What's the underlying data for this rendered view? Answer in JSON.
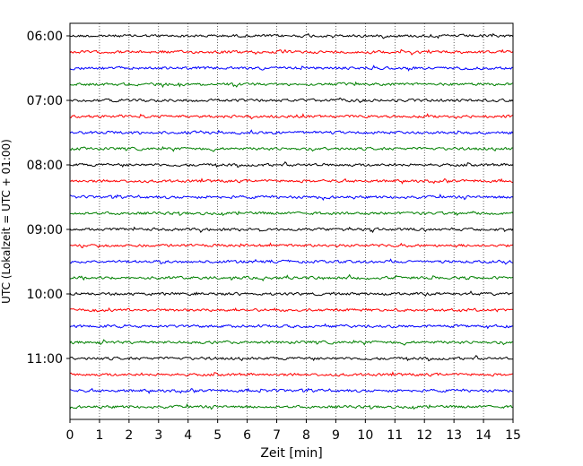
{
  "chart_data": {
    "type": "line",
    "title": "",
    "xlabel": "Zeit  [min]",
    "ylabel": "UTC (Lokalzeit = UTC + 01:00)",
    "xlim": [
      0,
      15
    ],
    "xticks": [
      0,
      1,
      2,
      3,
      4,
      5,
      6,
      7,
      8,
      9,
      10,
      11,
      12,
      13,
      14,
      15
    ],
    "grid": "vertical-dotted",
    "y_tick_labels": [
      "06:00",
      "07:00",
      "08:00",
      "09:00",
      "10:00",
      "11:00"
    ],
    "trace_interval_min": 15,
    "start_time": "06:00",
    "trace_count": 24,
    "trace_colors": [
      "#000000",
      "#ff0000",
      "#0000ff",
      "#008000"
    ],
    "amplitude_note": "noise-like seismogram traces, one per 15-minute window"
  }
}
